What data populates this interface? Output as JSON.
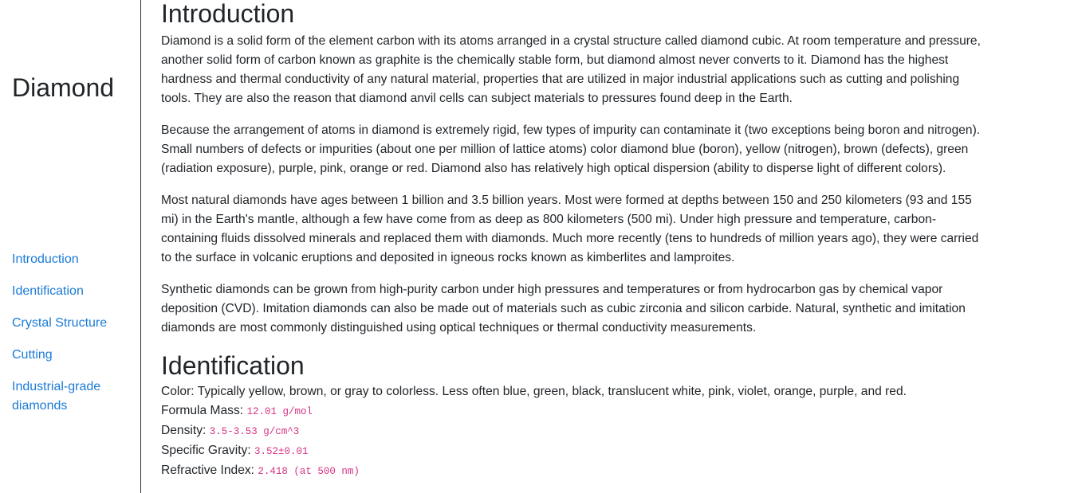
{
  "sidebar": {
    "brand": "Diamond",
    "nav": [
      {
        "label": "Introduction"
      },
      {
        "label": "Identification"
      },
      {
        "label": "Crystal Structure"
      },
      {
        "label": "Cutting"
      },
      {
        "label": "Industrial-grade diamonds"
      }
    ]
  },
  "main": {
    "intro": {
      "title": "Introduction",
      "paragraphs": [
        "Diamond is a solid form of the element carbon with its atoms arranged in a crystal structure called diamond cubic. At room temperature and pressure, another solid form of carbon known as graphite is the chemically stable form, but diamond almost never converts to it. Diamond has the highest hardness and thermal conductivity of any natural material, properties that are utilized in major industrial applications such as cutting and polishing tools. They are also the reason that diamond anvil cells can subject materials to pressures found deep in the Earth.",
        "Because the arrangement of atoms in diamond is extremely rigid, few types of impurity can contaminate it (two exceptions being boron and nitrogen). Small numbers of defects or impurities (about one per million of lattice atoms) color diamond blue (boron), yellow (nitrogen), brown (defects), green (radiation exposure), purple, pink, orange or red. Diamond also has relatively high optical dispersion (ability to disperse light of different colors).",
        "Most natural diamonds have ages between 1 billion and 3.5 billion years. Most were formed at depths between 150 and 250 kilometers (93 and 155 mi) in the Earth's mantle, although a few have come from as deep as 800 kilometers (500 mi). Under high pressure and temperature, carbon-containing fluids dissolved minerals and replaced them with diamonds. Much more recently (tens to hundreds of million years ago), they were carried to the surface in volcanic eruptions and deposited in igneous rocks known as kimberlites and lamproites.",
        "Synthetic diamonds can be grown from high-purity carbon under high pressures and temperatures or from hydrocarbon gas by chemical vapor deposition (CVD). Imitation diamonds can also be made out of materials such as cubic zirconia and silicon carbide. Natural, synthetic and imitation diamonds are most commonly distinguished using optical techniques or thermal conductivity measurements."
      ]
    },
    "identification": {
      "title": "Identification",
      "properties": [
        {
          "label": "Color:",
          "value": "Typically yellow, brown, or gray to colorless. Less often blue, green, black, translucent white, pink, violet, orange, purple, and red.",
          "code": false
        },
        {
          "label": "Formula Mass:",
          "value": "12.01 g/mol",
          "code": true
        },
        {
          "label": "Density:",
          "value": "3.5-3.53 g/cm^3",
          "code": true
        },
        {
          "label": "Specific Gravity:",
          "value": "3.52±0.01",
          "code": true
        },
        {
          "label": "Refractive Index:",
          "value": "2.418 (at 500 nm)",
          "code": true
        }
      ]
    }
  },
  "colors": {
    "link": "#1a7bd6",
    "code": "#d63384",
    "text": "#212529"
  }
}
